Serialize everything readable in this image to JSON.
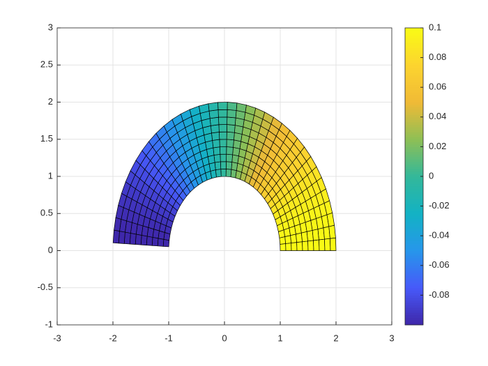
{
  "chart_data": {
    "type": "surface",
    "xlim": [
      -3,
      3
    ],
    "xticks": [
      -3,
      -2,
      -1,
      0,
      1,
      2,
      3
    ],
    "ylim": [
      -1,
      3
    ],
    "yticks": [
      -1,
      -0.5,
      0,
      0.5,
      1,
      1.5,
      2,
      2.5,
      3
    ],
    "grid": true,
    "r": [
      1,
      1.1,
      1.2,
      1.3,
      1.4,
      1.5,
      1.6,
      1.7,
      1.8,
      1.9,
      2
    ],
    "theta_deg": [
      0,
      4.92,
      9.83,
      14.75,
      19.67,
      24.58,
      29.5,
      34.42,
      39.33,
      44.25,
      49.17,
      54.08,
      59,
      63.92,
      68.83,
      73.75,
      78.67,
      83.58,
      88.5,
      93.42,
      98.33,
      103.25,
      108.17,
      113.08,
      118,
      122.92,
      127.83,
      132.75,
      137.67,
      142.58,
      147.5,
      152.42,
      157.33,
      162.25,
      167.17,
      172.08,
      177
    ],
    "values": [
      0.0999,
      0.0992,
      0.0977,
      0.0955,
      0.0926,
      0.0891,
      0.0848,
      0.08,
      0.0745,
      0.0686,
      0.0621,
      0.0551,
      0.0478,
      0.0401,
      0.0321,
      0.0238,
      0.0154,
      0.0069,
      -0.0017,
      -0.0102,
      -0.0187,
      -0.0271,
      -0.0352,
      -0.0431,
      -0.0507,
      -0.0579,
      -0.0646,
      -0.071,
      -0.0767,
      -0.0819,
      -0.0865,
      -0.0905,
      -0.0938,
      -0.0965,
      -0.0984,
      -0.0995
    ],
    "colormap": [
      "#3e26a8",
      "#4759f9",
      "#2796eb",
      "#13b2c4",
      "#33b89a",
      "#8ebf55",
      "#f0ba36",
      "#fcd42f",
      "#f9fb15"
    ],
    "clim": [
      -0.1,
      0.1
    ],
    "cticks": [
      -0.08,
      -0.06,
      -0.04,
      -0.02,
      0,
      0.02,
      0.04,
      0.06,
      0.08,
      0.1
    ]
  }
}
